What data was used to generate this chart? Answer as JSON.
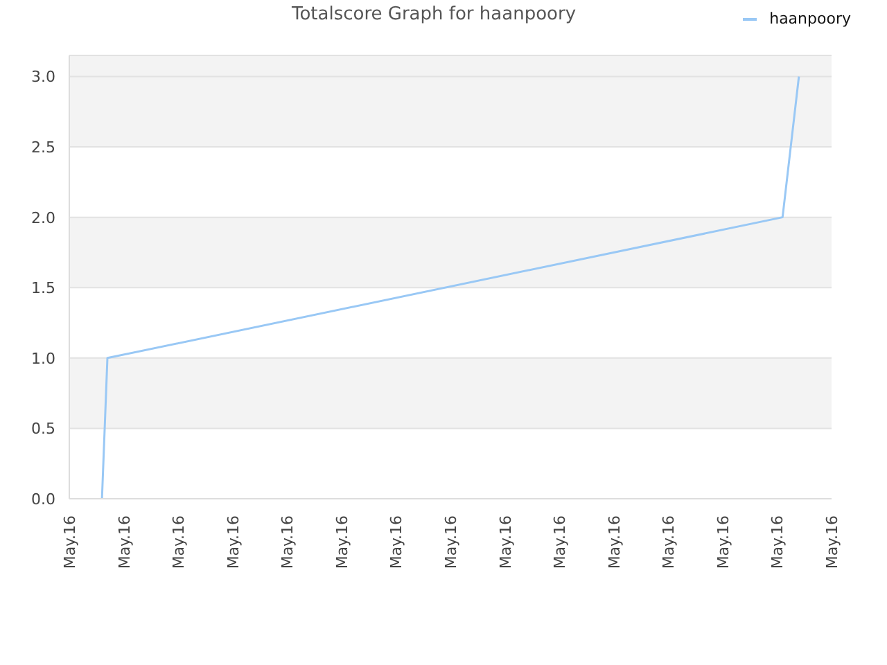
{
  "chart_data": {
    "type": "line",
    "title": "Totalscore Graph for haanpoory",
    "categories": [
      "May.16",
      null,
      null,
      null,
      null,
      null,
      null,
      null,
      null,
      null,
      "May.16",
      null,
      null,
      null,
      null,
      null,
      null,
      null,
      null,
      null,
      "May.16",
      null,
      null,
      null,
      null,
      null,
      null,
      null,
      null,
      null,
      "May.16",
      null,
      null,
      null,
      null,
      null,
      null,
      null,
      null,
      null,
      "May.16",
      null,
      null,
      null,
      null,
      null,
      null,
      null,
      null,
      null,
      "May.16",
      null,
      null,
      null,
      null,
      null,
      null,
      null,
      null,
      null,
      "May.16",
      null,
      null,
      null,
      null,
      null,
      null,
      null,
      null,
      null,
      "May.16",
      null,
      null,
      null,
      null,
      null,
      null,
      null,
      null,
      null,
      "May.16",
      null,
      null,
      null,
      null,
      null,
      null,
      null,
      null,
      null,
      "May.16",
      null,
      null,
      null,
      null,
      null,
      null,
      null,
      null,
      null,
      "May.16",
      null,
      null,
      null,
      null,
      null,
      null,
      null,
      null,
      null,
      "May.16",
      null,
      null,
      null,
      null,
      null,
      null,
      null,
      null,
      null,
      "May.16",
      null,
      null,
      null,
      null,
      null,
      null,
      null,
      null,
      null,
      "May.16",
      null,
      null,
      null,
      null,
      null,
      null,
      null,
      null,
      null,
      "May.16"
    ],
    "series": [
      {
        "name": "haanpoory",
        "color": "#99c8f5",
        "values": [
          null,
          null,
          null,
          null,
          null,
          null,
          0,
          1,
          null,
          null,
          null,
          null,
          null,
          null,
          null,
          null,
          null,
          null,
          null,
          null,
          null,
          null,
          null,
          null,
          null,
          null,
          null,
          null,
          null,
          null,
          null,
          null,
          null,
          null,
          null,
          null,
          null,
          null,
          null,
          null,
          null,
          null,
          null,
          null,
          null,
          null,
          null,
          null,
          null,
          null,
          null,
          null,
          null,
          null,
          null,
          null,
          null,
          null,
          null,
          null,
          null,
          null,
          null,
          null,
          null,
          null,
          null,
          null,
          null,
          null,
          null,
          null,
          null,
          null,
          null,
          null,
          null,
          null,
          null,
          null,
          null,
          null,
          null,
          null,
          null,
          null,
          null,
          null,
          null,
          null,
          null,
          null,
          null,
          null,
          null,
          null,
          null,
          null,
          null,
          null,
          null,
          null,
          null,
          null,
          null,
          null,
          null,
          null,
          null,
          null,
          null,
          null,
          null,
          null,
          null,
          null,
          null,
          null,
          null,
          null,
          null,
          null,
          null,
          null,
          null,
          null,
          null,
          null,
          null,
          null,
          null,
          2,
          null,
          null,
          3,
          null,
          null,
          null,
          null,
          null,
          null
        ]
      }
    ],
    "ylim": [
      0,
      3.15
    ],
    "yticks": [
      {
        "value": 0,
        "label": "0.0"
      },
      {
        "value": 0.5,
        "label": "0.5"
      },
      {
        "value": 1,
        "label": "1.0"
      },
      {
        "value": 1.5,
        "label": "1.5"
      },
      {
        "value": 2,
        "label": "2.0"
      },
      {
        "value": 2.5,
        "label": "2.5"
      },
      {
        "value": 3,
        "label": "3.0"
      }
    ],
    "grid": "y",
    "legend": "top right"
  }
}
